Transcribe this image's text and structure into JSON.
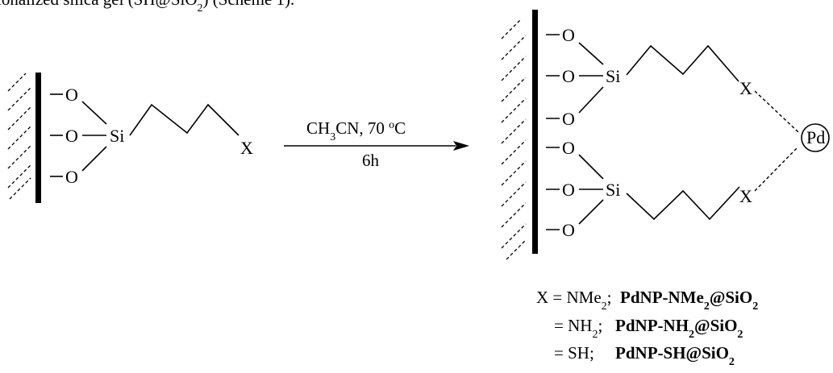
{
  "caption_fragment": "ionalized silica gel (SH@SiO",
  "caption_fragment_sub": "2",
  "caption_fragment_end": ") (Scheme 1).",
  "atoms": {
    "oxygen": "O",
    "silicon": "Si",
    "substituent": "X",
    "palladium": "Pd"
  },
  "conditions": {
    "reagent": "CH",
    "reagent_sub": "3",
    "reagent_rest": "CN, 70 ",
    "temp_sup": "o",
    "temp_unit": "C",
    "time": "6h"
  },
  "legend": [
    {
      "lead": "X = NMe",
      "lead_sub": "2",
      "sep": ";  ",
      "name": "PdNP-NMe",
      "name_sub": "2",
      "name_rest": "@SiO",
      "name_sub2": "2"
    },
    {
      "lead": "= NH",
      "lead_sub": "2",
      "sep": ";   ",
      "name": "PdNP-NH",
      "name_sub": "2",
      "name_rest": "@SiO",
      "name_sub2": "2"
    },
    {
      "lead": "= SH;",
      "lead_sub": "",
      "sep": "     ",
      "name": "PdNP-SH@SiO",
      "name_sub": "2",
      "name_rest": "",
      "name_sub2": ""
    }
  ]
}
